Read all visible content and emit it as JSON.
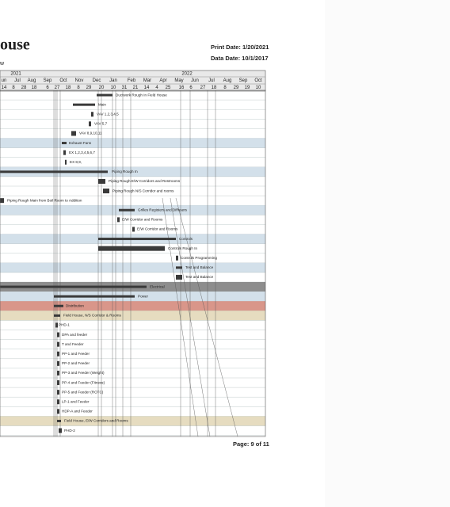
{
  "header": {
    "title": "ouse",
    "subtitle": "w",
    "print_date": "Print Date: 1/20/2021",
    "data_date": "Data Date: 10/1/2017"
  },
  "timeline": {
    "years": [
      "2021",
      "2022"
    ],
    "months": [
      "un",
      "Jul",
      "Aug",
      "Sep",
      "Oct",
      "Nov",
      "Dec",
      "Jan",
      "Feb",
      "Mar",
      "Apr",
      "May",
      "Jun",
      "Jul",
      "Aug",
      "Sep",
      "Oct"
    ],
    "days": [
      "14",
      "8",
      "28",
      "18",
      "6",
      "27",
      "18",
      "8",
      "29",
      "20",
      "10",
      "31",
      "21",
      "14",
      "4",
      "25",
      "16",
      "6",
      "27",
      "18",
      "8",
      "29",
      "19",
      "10"
    ]
  },
  "tasks": [
    "Ductwork Rough In Field House",
    "Main",
    "VAV 1,2,3,4,5",
    "VAV 5,7",
    "VAV 8,9,10,11",
    "Exhaust Fans",
    "EX 1,2,3,4,5,6,7",
    "EX 8,9,",
    "Piping Rough In",
    "Piping Rough E/W Corridors and Restrooms",
    "Piping Rough N/S Corridor and rooms",
    "Piping Rough Main from Boil Room to Addition",
    "Grilles Registers and Diffusers",
    "E/W Corridor and Rooms",
    "E/W Corridor and Rooms",
    "Controls",
    "Controls Rough In",
    "Controls Programming",
    "Test and Balance",
    "Test and Balance",
    "Electrical",
    "Power",
    "Distribution",
    "Field House, N/S Corridor & Rooms",
    "PHD-1",
    "DPA and feeder",
    "T and Feeder",
    "PP-1 and Feeder",
    "PP-2 and Feeder",
    "PP-3 and Feeder (Weight)",
    "PP-4 and Feeder (Fitness)",
    "PP-5 and Feeder (ROTC)",
    "LP-1 and Feeder",
    "HDP-A and Feeder",
    "Field House, E/W Corridors and Rooms",
    "PHD-2"
  ],
  "footer": {
    "page": "Page: 9 of 11"
  }
}
